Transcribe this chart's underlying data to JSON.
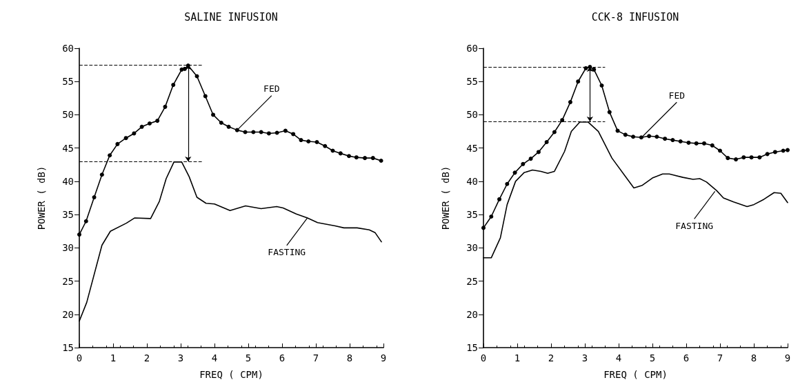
{
  "chart_data": [
    {
      "type": "line",
      "title": "SALINE INFUSION",
      "xlabel": "FREQ ( CPM)",
      "ylabel": "POWER ( dB)",
      "xlim": [
        0,
        9
      ],
      "xticks": [
        0,
        1,
        2,
        3,
        4,
        5,
        6,
        7,
        8,
        9
      ],
      "ylim": [
        15,
        60
      ],
      "yticks": [
        15,
        20,
        25,
        30,
        35,
        40,
        45,
        50,
        55,
        60
      ],
      "grid": false,
      "series": [
        {
          "color": "#000000",
          "marker": "circle",
          "x": [
            0,
            0.2,
            0.44,
            0.67,
            0.9,
            1.13,
            1.38,
            1.62,
            1.85,
            2.08,
            2.31,
            2.54,
            2.78,
            3.03,
            3.12,
            3.22,
            3.48,
            3.73,
            3.96,
            4.2,
            4.42,
            4.67,
            4.91,
            5.15,
            5.38,
            5.61,
            5.85,
            6.1,
            6.33,
            6.56,
            6.78,
            7.03,
            7.27,
            7.5,
            7.73,
            7.98,
            8.2,
            8.45,
            8.69,
            8.93
          ],
          "values": [
            32,
            34,
            37.6,
            41,
            43.9,
            45.6,
            46.5,
            47.2,
            48.2,
            48.7,
            49.1,
            51.2,
            54.5,
            56.8,
            56.9,
            57.4,
            55.8,
            52.8,
            50,
            48.8,
            48.2,
            47.7,
            47.4,
            47.4,
            47.4,
            47.2,
            47.3,
            47.6,
            47.1,
            46.2,
            46,
            45.9,
            45.3,
            44.6,
            44.2,
            43.8,
            43.6,
            43.5,
            43.5,
            43.1
          ]
        },
        {
          "color": "#000000",
          "marker": "none",
          "x": [
            0,
            0.22,
            0.67,
            0.92,
            1.39,
            1.64,
            2.11,
            2.37,
            2.57,
            2.8,
            3.03,
            3.25,
            3.48,
            3.75,
            4,
            4.46,
            4.92,
            5.38,
            5.84,
            6.03,
            6.42,
            6.75,
            7.05,
            7.57,
            7.83,
            8.22,
            8.58,
            8.75,
            8.94
          ],
          "values": [
            19,
            21.8,
            30.4,
            32.5,
            33.7,
            34.5,
            34.4,
            37,
            40.4,
            42.9,
            42.9,
            40.7,
            37.6,
            36.7,
            36.6,
            35.6,
            36.3,
            35.9,
            36.2,
            36,
            35.1,
            34.5,
            33.8,
            33.3,
            33,
            33,
            32.7,
            32.3,
            30.9
          ]
        }
      ],
      "ref_lines": [
        {
          "axis": "y",
          "value": 57.5,
          "line_style": "dashed"
        },
        {
          "axis": "y",
          "value": 43,
          "line_style": "dashed"
        }
      ],
      "annotations": [
        {
          "text": "FED",
          "x": 4.67,
          "y": 47.7
        },
        {
          "text": "FASTING",
          "x": 6.75,
          "y": 34.5
        }
      ]
    },
    {
      "type": "line",
      "title": "CCK-8 INFUSION",
      "xlabel": "FREQ ( CPM)",
      "ylabel": "POWER ( dB)",
      "xlim": [
        0,
        9
      ],
      "xticks": [
        0,
        1,
        2,
        3,
        4,
        5,
        6,
        7,
        8,
        9
      ],
      "ylim": [
        15,
        60
      ],
      "yticks": [
        15,
        20,
        25,
        30,
        35,
        40,
        45,
        50,
        55,
        60
      ],
      "grid": false,
      "series": [
        {
          "color": "#000000",
          "marker": "circle",
          "x": [
            0,
            0.23,
            0.47,
            0.7,
            0.93,
            1.17,
            1.4,
            1.63,
            1.87,
            2.1,
            2.33,
            2.57,
            2.8,
            3.03,
            3.15,
            3.27,
            3.5,
            3.73,
            3.97,
            4.2,
            4.43,
            4.67,
            4.9,
            5.13,
            5.37,
            5.6,
            5.83,
            6.07,
            6.3,
            6.53,
            6.77,
            7,
            7.23,
            7.47,
            7.7,
            7.93,
            8.17,
            8.4,
            8.63,
            8.87,
            9
          ],
          "values": [
            33,
            34.7,
            37.3,
            39.6,
            41.3,
            42.6,
            43.4,
            44.4,
            45.9,
            47.4,
            49.2,
            51.9,
            55,
            57,
            57.2,
            56.8,
            54.4,
            50.4,
            47.6,
            47,
            46.7,
            46.6,
            46.8,
            46.7,
            46.4,
            46.2,
            46,
            45.8,
            45.7,
            45.7,
            45.4,
            44.6,
            43.5,
            43.3,
            43.6,
            43.6,
            43.6,
            44.1,
            44.4,
            44.6,
            44.7
          ]
        },
        {
          "color": "#000000",
          "marker": "none",
          "x": [
            0,
            0.23,
            0.5,
            0.7,
            0.95,
            1.2,
            1.45,
            1.7,
            1.9,
            2.1,
            2.4,
            2.6,
            2.85,
            3.1,
            3.4,
            3.8,
            4.45,
            4.7,
            5,
            5.3,
            5.5,
            5.9,
            6.2,
            6.4,
            6.6,
            6.9,
            7.1,
            7.4,
            7.8,
            8,
            8.3,
            8.6,
            8.8,
            9
          ],
          "values": [
            28.5,
            28.5,
            31.5,
            36.5,
            40,
            41.3,
            41.7,
            41.5,
            41.2,
            41.5,
            44.5,
            47.5,
            48.9,
            48.9,
            47.5,
            43.5,
            39,
            39.4,
            40.5,
            41.1,
            41.1,
            40.6,
            40.3,
            40.4,
            39.9,
            38.6,
            37.5,
            36.9,
            36.2,
            36.5,
            37.3,
            38.3,
            38.2,
            36.8
          ]
        }
      ],
      "ref_lines": [
        {
          "axis": "y",
          "value": 57.2,
          "line_style": "dashed"
        },
        {
          "axis": "y",
          "value": 49,
          "line_style": "dashed"
        }
      ],
      "annotations": [
        {
          "text": "FED",
          "x": 4.7,
          "y": 46.7
        },
        {
          "text": "FASTING",
          "x": 6.85,
          "y": 38.5
        }
      ]
    }
  ]
}
